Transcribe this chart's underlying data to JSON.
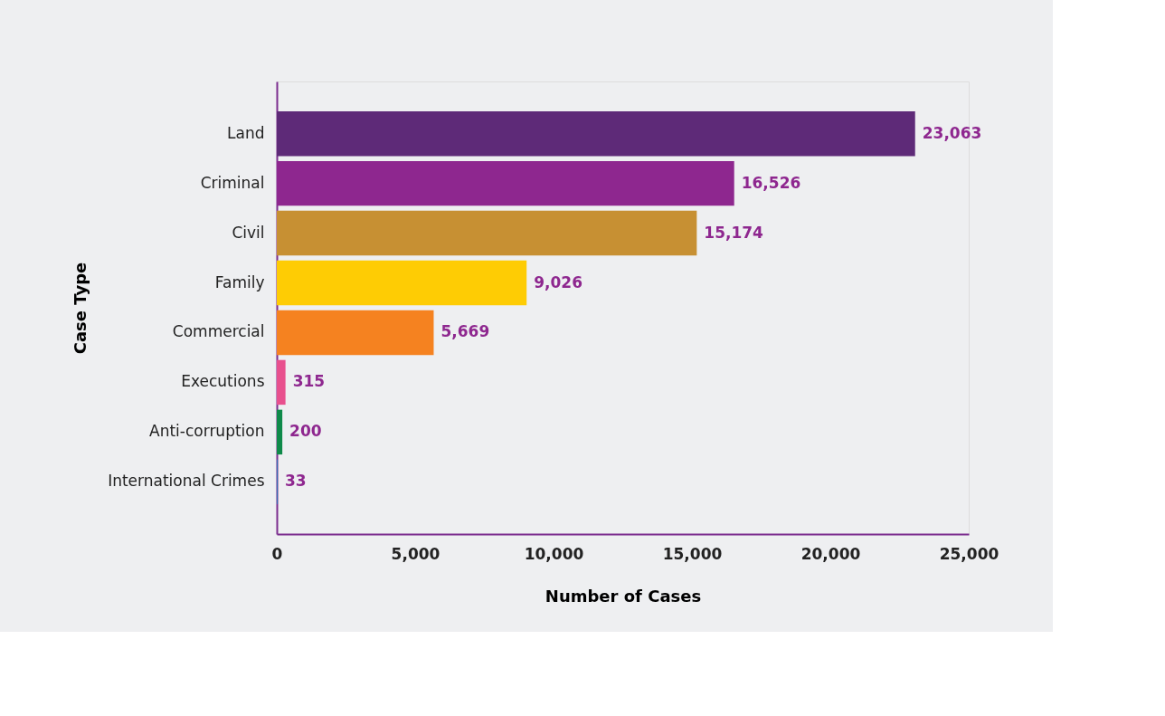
{
  "chart_data": {
    "type": "bar",
    "orientation": "horizontal",
    "xlabel": "Number of Cases",
    "ylabel": "Case Type",
    "categories": [
      "Land",
      "Criminal",
      "Civil",
      "Family",
      "Commercial",
      "Executions",
      "Anti-corruption",
      "International Crimes"
    ],
    "values": [
      23063,
      16526,
      15174,
      9026,
      5669,
      315,
      200,
      33
    ],
    "colors": [
      "#5e2a78",
      "#8e278f",
      "#c79033",
      "#fecc04",
      "#f58220",
      "#e8508e",
      "#0f8a4a",
      "#2e6db4"
    ],
    "value_labels": [
      "23,063",
      "16,526",
      "15,174",
      "9,026",
      "5,669",
      "315",
      "200",
      "33"
    ],
    "xlim": [
      0,
      25000
    ],
    "xticks": [
      {
        "value": 0,
        "label": "0"
      },
      {
        "value": 5000,
        "label": "5,000"
      },
      {
        "value": 10000,
        "label": "10,000"
      },
      {
        "value": 15000,
        "label": "15,000"
      },
      {
        "value": 20000,
        "label": "20,000"
      },
      {
        "value": 25000,
        "label": "25,000"
      }
    ],
    "grid": false
  }
}
